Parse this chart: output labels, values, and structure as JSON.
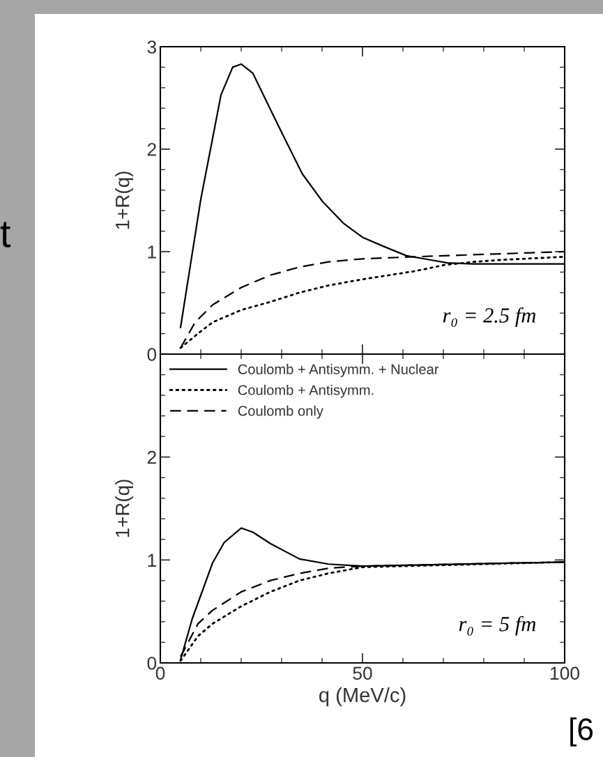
{
  "chart_data": [
    {
      "type": "line",
      "ylabel": "1+R(q)",
      "xlim": [
        0,
        100
      ],
      "xticks": [
        0,
        50,
        100
      ],
      "ylim": [
        0,
        3
      ],
      "yticks": [
        0,
        1,
        2,
        3
      ],
      "tick_labels": "y",
      "grid": false,
      "legend": false,
      "annotations": [
        "r₀ = 2.5 fm",
        "t"
      ],
      "series": [
        {
          "color": "#000000",
          "line_style": "solid",
          "x": [
            5,
            10,
            12.9,
            15,
            17.9,
            20,
            22.9,
            27.2,
            30.8,
            35.1,
            40.1,
            45.2,
            50,
            55.9,
            60.9,
            66.7,
            71,
            77.4,
            100
          ],
          "values": [
            0.26,
            1.51,
            2.1,
            2.53,
            2.8,
            2.83,
            2.74,
            2.39,
            2.1,
            1.76,
            1.49,
            1.28,
            1.14,
            1.04,
            0.96,
            0.92,
            0.89,
            0.88,
            0.88
          ]
        },
        {
          "color": "#000000",
          "line_style": "dotted",
          "x": [
            5,
            9.3,
            12.9,
            20,
            27.2,
            34.4,
            41.6,
            50,
            63,
            70.3,
            77.4,
            84.6,
            100
          ],
          "values": [
            0.06,
            0.2,
            0.31,
            0.43,
            0.51,
            0.6,
            0.67,
            0.73,
            0.81,
            0.87,
            0.9,
            0.92,
            0.95
          ]
        },
        {
          "color": "#000000",
          "line_style": "dashed",
          "x": [
            5,
            8.6,
            12.9,
            20,
            27.2,
            34.4,
            41.6,
            50,
            63,
            77.4,
            100
          ],
          "values": [
            0.06,
            0.31,
            0.48,
            0.65,
            0.77,
            0.85,
            0.9,
            0.93,
            0.95,
            0.97,
            1.0
          ]
        }
      ]
    },
    {
      "type": "line",
      "xlabel": "q (MeV/c)",
      "ylabel": "1+R(q)",
      "xlim": [
        0,
        100
      ],
      "xticks": [
        0,
        50,
        100
      ],
      "ylim": [
        0,
        3
      ],
      "yticks": [
        0,
        1,
        2,
        {
          "value": 3,
          "label": null
        }
      ],
      "grid": false,
      "legend": "top left",
      "annotations": [
        "r₀ = 5 fm",
        "[6"
      ],
      "series": [
        {
          "name": "Coulomb + Antisymm. + Nuclear",
          "color": "#000000",
          "line_style": "solid",
          "x": [
            5,
            7.9,
            12.9,
            15.8,
            20,
            22.9,
            27.2,
            34.4,
            41.6,
            50,
            63,
            100
          ],
          "values": [
            0.03,
            0.43,
            0.97,
            1.17,
            1.31,
            1.27,
            1.16,
            1.01,
            0.96,
            0.94,
            0.95,
            0.98
          ]
        },
        {
          "name": "Coulomb + Antisymm.",
          "color": "#000000",
          "line_style": "dotted",
          "x": [
            5,
            9.3,
            12.9,
            20,
            27.2,
            34.4,
            41.6,
            50,
            100
          ],
          "values": [
            0.02,
            0.26,
            0.38,
            0.55,
            0.69,
            0.8,
            0.87,
            0.93,
            0.98
          ]
        },
        {
          "name": "Coulomb only",
          "color": "#000000",
          "line_style": "dashed",
          "x": [
            5,
            9.3,
            12.9,
            20,
            27.2,
            34.4,
            41.6,
            50,
            100
          ],
          "values": [
            0.06,
            0.38,
            0.51,
            0.69,
            0.8,
            0.87,
            0.92,
            0.94,
            0.98
          ]
        }
      ]
    }
  ]
}
